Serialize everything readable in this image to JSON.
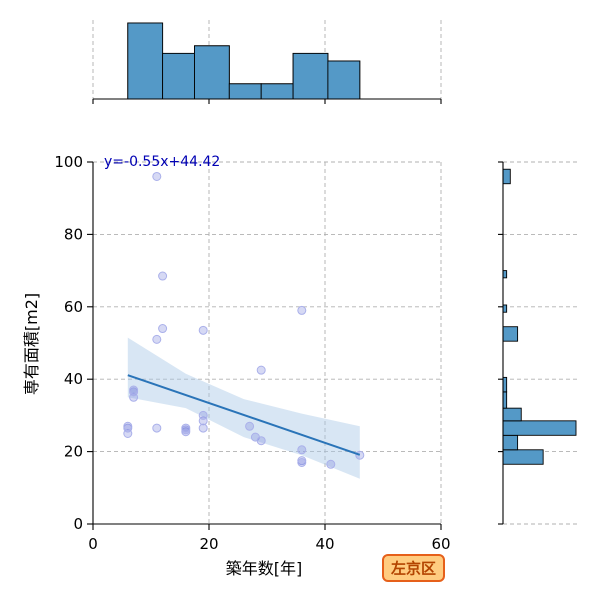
{
  "chart_data": {
    "type": "scatter",
    "xlabel": "築年数[年]",
    "ylabel": "専有面積[m2]",
    "xlim": [
      0,
      60
    ],
    "ylim": [
      0,
      100
    ],
    "x_ticks": [
      0,
      20,
      40,
      60
    ],
    "y_ticks": [
      0,
      20,
      40,
      60,
      80,
      100
    ],
    "grid": true,
    "points": [
      {
        "x": 6,
        "y": 25
      },
      {
        "x": 6,
        "y": 26.5
      },
      {
        "x": 6,
        "y": 27
      },
      {
        "x": 7,
        "y": 35
      },
      {
        "x": 7,
        "y": 36.5
      },
      {
        "x": 7,
        "y": 37
      },
      {
        "x": 11,
        "y": 96
      },
      {
        "x": 11,
        "y": 51
      },
      {
        "x": 11,
        "y": 26.5
      },
      {
        "x": 12,
        "y": 68.5
      },
      {
        "x": 12,
        "y": 54
      },
      {
        "x": 16,
        "y": 25.5
      },
      {
        "x": 16,
        "y": 26
      },
      {
        "x": 16,
        "y": 26.5
      },
      {
        "x": 19,
        "y": 53.5
      },
      {
        "x": 19,
        "y": 26.5
      },
      {
        "x": 19,
        "y": 28.5
      },
      {
        "x": 19,
        "y": 30
      },
      {
        "x": 27,
        "y": 27
      },
      {
        "x": 28,
        "y": 24
      },
      {
        "x": 29,
        "y": 42.5
      },
      {
        "x": 29,
        "y": 23
      },
      {
        "x": 36,
        "y": 59
      },
      {
        "x": 36,
        "y": 20.5
      },
      {
        "x": 36,
        "y": 17.5
      },
      {
        "x": 36,
        "y": 17
      },
      {
        "x": 41,
        "y": 16.5
      },
      {
        "x": 46,
        "y": 19
      }
    ],
    "regression": {
      "label": "y=-0.55x+44.42",
      "x_range": [
        6,
        46
      ],
      "ci_upper": [
        [
          6,
          51.5
        ],
        [
          16,
          41.5
        ],
        [
          26,
          34.5
        ],
        [
          36,
          30.5
        ],
        [
          46,
          27
        ]
      ],
      "ci_lower": [
        [
          6,
          35
        ],
        [
          16,
          32
        ],
        [
          26,
          24
        ],
        [
          36,
          19
        ],
        [
          46,
          12.5
        ]
      ]
    },
    "top_histogram": {
      "bins": [
        [
          6,
          12
        ],
        [
          12,
          17.5
        ],
        [
          17.5,
          23.5
        ],
        [
          23.5,
          29
        ],
        [
          29,
          34.5
        ],
        [
          34.5,
          40.5
        ],
        [
          40.5,
          46
        ]
      ],
      "counts": [
        10,
        6,
        7,
        2,
        2,
        6,
        5
      ]
    },
    "right_histogram": {
      "bins": [
        [
          16.5,
          20.5
        ],
        [
          20.5,
          24.5
        ],
        [
          24.5,
          28.5
        ],
        [
          28.5,
          32
        ],
        [
          32,
          36.5
        ],
        [
          36.5,
          40.5
        ],
        [
          50.5,
          54.5
        ],
        [
          58.5,
          60.5
        ],
        [
          68,
          70
        ],
        [
          94,
          98
        ]
      ],
      "counts": [
        11,
        4,
        20,
        5,
        1,
        1,
        4,
        1,
        1,
        2
      ]
    }
  },
  "badge": {
    "label": "左京区",
    "bg_color": "#ffcc80",
    "border_color": "#e6601a",
    "text_color": "#b34400"
  },
  "colors": {
    "histogram_fill": "#5499c7",
    "regression_line": "#2a74b8",
    "points": "#6a75d8",
    "annotation": "#0000b4"
  }
}
